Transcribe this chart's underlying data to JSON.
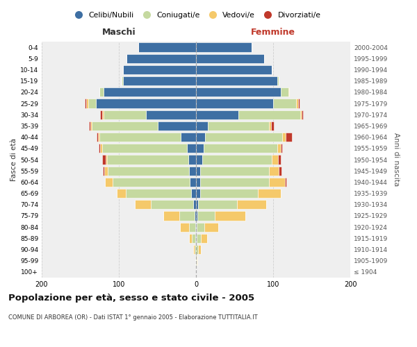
{
  "age_groups": [
    "100+",
    "95-99",
    "90-94",
    "85-89",
    "80-84",
    "75-79",
    "70-74",
    "65-69",
    "60-64",
    "55-59",
    "50-54",
    "45-49",
    "40-44",
    "35-39",
    "30-34",
    "25-29",
    "20-24",
    "15-19",
    "10-14",
    "5-9",
    "0-4"
  ],
  "birth_years": [
    "≤ 1904",
    "1905-1909",
    "1910-1914",
    "1915-1919",
    "1920-1924",
    "1925-1929",
    "1930-1934",
    "1935-1939",
    "1940-1944",
    "1945-1949",
    "1950-1954",
    "1955-1959",
    "1960-1964",
    "1965-1969",
    "1970-1974",
    "1975-1979",
    "1980-1984",
    "1985-1989",
    "1990-1994",
    "1995-1999",
    "2000-2004"
  ],
  "colors": {
    "celibi": "#3e6fa3",
    "coniugati": "#c5d9a0",
    "vedovi": "#f5c96a",
    "divorziati": "#c0392b"
  },
  "males": {
    "celibi": [
      0,
      0,
      0,
      1,
      1,
      2,
      4,
      6,
      8,
      9,
      10,
      12,
      20,
      50,
      65,
      130,
      120,
      95,
      95,
      90,
      75
    ],
    "coniugati": [
      0,
      1,
      2,
      4,
      8,
      20,
      55,
      85,
      100,
      105,
      105,
      110,
      105,
      85,
      55,
      10,
      5,
      1,
      0,
      0,
      0
    ],
    "vedovi": [
      0,
      0,
      2,
      4,
      12,
      20,
      20,
      12,
      10,
      5,
      2,
      2,
      2,
      2,
      2,
      2,
      0,
      0,
      0,
      0,
      0
    ],
    "divorziati": [
      0,
      0,
      0,
      0,
      0,
      0,
      0,
      0,
      0,
      2,
      5,
      2,
      2,
      2,
      2,
      2,
      0,
      0,
      0,
      0,
      0
    ]
  },
  "females": {
    "celibi": [
      0,
      0,
      0,
      1,
      1,
      2,
      3,
      5,
      5,
      5,
      8,
      10,
      12,
      15,
      55,
      100,
      110,
      105,
      98,
      88,
      72
    ],
    "coniugati": [
      0,
      1,
      3,
      5,
      10,
      22,
      50,
      75,
      90,
      90,
      90,
      95,
      100,
      80,
      80,
      30,
      10,
      2,
      0,
      0,
      0
    ],
    "vedovi": [
      0,
      1,
      3,
      8,
      18,
      40,
      38,
      30,
      20,
      12,
      8,
      5,
      4,
      2,
      2,
      2,
      1,
      0,
      0,
      0,
      0
    ],
    "divorziati": [
      0,
      0,
      0,
      0,
      0,
      0,
      0,
      0,
      2,
      4,
      4,
      2,
      8,
      4,
      2,
      2,
      0,
      0,
      0,
      0,
      0
    ]
  },
  "title": "Popolazione per età, sesso e stato civile - 2005",
  "subtitle": "COMUNE DI ARBOREA (OR) - Dati ISTAT 1° gennaio 2005 - Elaborazione TUTTITALIA.IT",
  "xlabel_left": "Maschi",
  "xlabel_right": "Femmine",
  "ylabel_left": "Fasce di età",
  "ylabel_right": "Anni di nascita",
  "xlim": 200,
  "legend_labels": [
    "Celibi/Nubili",
    "Coniugati/e",
    "Vedovi/e",
    "Divorziati/e"
  ],
  "background_color": "#ffffff",
  "plot_bg": "#efefef"
}
